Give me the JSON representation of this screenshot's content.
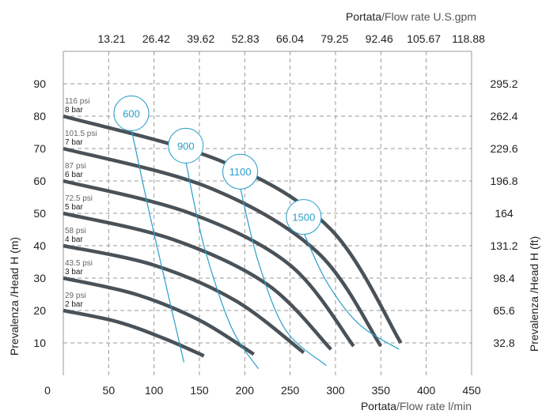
{
  "chart_data": {
    "type": "line",
    "xlabel_bold": "Portata",
    "xlabel_rest": "/Flow rate  l/min",
    "x2label_bold": "Portata",
    "x2label_rest": "/Flow rate U.S.gpm",
    "ylabel": "Prevalenza /Head H (m)",
    "y2label": "Prevalenza /Head H (ft)",
    "xlim": [
      0,
      450
    ],
    "ylim": [
      0,
      100
    ],
    "grid": true,
    "x_ticks": [
      "0",
      "50",
      "100",
      "150",
      "200",
      "250",
      "300",
      "350",
      "400",
      "450"
    ],
    "x2_ticks": [
      "13.21",
      "26.42",
      "39.62",
      "52.83",
      "66.04",
      "79.25",
      "92.46",
      "105.67",
      "118.88"
    ],
    "y_ticks": [
      "10",
      "20",
      "30",
      "40",
      "50",
      "60",
      "70",
      "80",
      "90"
    ],
    "y2_ticks": [
      "32.8",
      "65.6",
      "98.4",
      "131.2",
      "164",
      "196.8",
      "229.6",
      "262.4",
      "295.2"
    ],
    "colors": {
      "pressure_curve": "#4a5259",
      "speed_curve": "#2a9fc8",
      "grid": "#999999"
    },
    "pressure_series": [
      {
        "psi": "29 psi",
        "bar": "2 bar",
        "x": [
          0,
          60,
          110,
          155
        ],
        "y": [
          20,
          16.5,
          11.5,
          6
        ]
      },
      {
        "psi": "43.5 psi",
        "bar": "3 bar",
        "x": [
          0,
          80,
          150,
          210
        ],
        "y": [
          30,
          25,
          17,
          6.5
        ]
      },
      {
        "psi": "58 psi",
        "bar": "4 bar",
        "x": [
          0,
          100,
          190,
          265
        ],
        "y": [
          40,
          34,
          23,
          7
        ]
      },
      {
        "psi": "72.5 psi",
        "bar": "5 bar",
        "x": [
          0,
          120,
          225,
          295
        ],
        "y": [
          50,
          42,
          28,
          8
        ]
      },
      {
        "psi": "87 psi",
        "bar": "6 bar",
        "x": [
          0,
          140,
          250,
          320
        ],
        "y": [
          60,
          50,
          34,
          9
        ]
      },
      {
        "psi": "101.5 psi",
        "bar": "7 bar",
        "x": [
          0,
          160,
          280,
          350
        ],
        "y": [
          70,
          58,
          38,
          9
        ]
      },
      {
        "psi": "116 psi",
        "bar": "8 bar",
        "x": [
          0,
          175,
          295,
          372
        ],
        "y": [
          80,
          66,
          45,
          10
        ]
      }
    ],
    "speed_series": [
      {
        "name": "600",
        "x": [
          75,
          95,
          118,
          133
        ],
        "y": [
          76,
          50,
          22,
          4
        ]
      },
      {
        "name": "900",
        "x": [
          135,
          155,
          185,
          215
        ],
        "y": [
          66,
          40,
          15,
          2
        ]
      },
      {
        "name": "1100",
        "x": [
          195,
          215,
          245,
          290
        ],
        "y": [
          58,
          35,
          14,
          3
        ]
      },
      {
        "name": "1500",
        "x": [
          265,
          290,
          325,
          370
        ],
        "y": [
          44,
          29,
          16,
          8
        ]
      }
    ]
  }
}
